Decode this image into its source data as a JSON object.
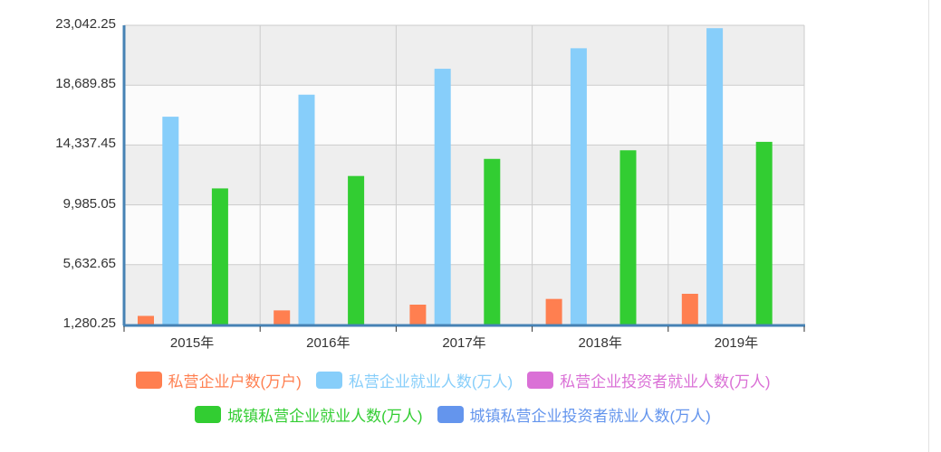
{
  "chart_data": {
    "type": "bar",
    "title": "",
    "xlabel": "",
    "ylabel": "",
    "categories": [
      "2015年",
      "2016年",
      "2017年",
      "2018年",
      "2019年"
    ],
    "ylim": [
      1280.25,
      23042.25
    ],
    "yticks": [
      "23,042.25",
      "18,689.85",
      "14,337.45",
      "9,985.05",
      "5,632.65",
      "1,280.25"
    ],
    "ytick_values": [
      23042.25,
      18689.85,
      14337.45,
      9985.05,
      5632.65,
      1280.25
    ],
    "grid": true,
    "legend_position": "bottom",
    "series": [
      {
        "name": "私营企业户数(万户)",
        "color": "#ff7f50",
        "values": [
          1908.2,
          2309.2,
          2726.3,
          3143.3,
          3516.4
        ]
      },
      {
        "name": "私营企业就业人数(万人)",
        "color": "#87cefa",
        "values": [
          16394.9,
          17997.1,
          19881.7,
          21375.4,
          22833.2
        ]
      },
      {
        "name": "私营企业投资者就业人数(万人)",
        "color": "#da70d6",
        "values": [
          null,
          null,
          null,
          null,
          null
        ]
      },
      {
        "name": "城镇私营企业就业人数(万人)",
        "color": "#32cd32",
        "values": [
          11180.3,
          12083.4,
          13327.4,
          13952.3,
          14567.4
        ]
      },
      {
        "name": "城镇私营企业投资者就业人数(万人)",
        "color": "#6495ed",
        "values": [
          null,
          null,
          null,
          null,
          null
        ]
      }
    ]
  },
  "legend": {
    "row1": [
      {
        "label": "私营企业户数(万户)",
        "color": "#ff7f50"
      },
      {
        "label": "私营企业就业人数(万人)",
        "color": "#87cefa"
      },
      {
        "label": "私营企业投资者就业人数(万人)",
        "color": "#da70d6"
      }
    ],
    "row2": [
      {
        "label": "城镇私营企业就业人数(万人)",
        "color": "#32cd32"
      },
      {
        "label": "城镇私营企业投资者就业人数(万人)",
        "color": "#6495ed"
      }
    ]
  }
}
